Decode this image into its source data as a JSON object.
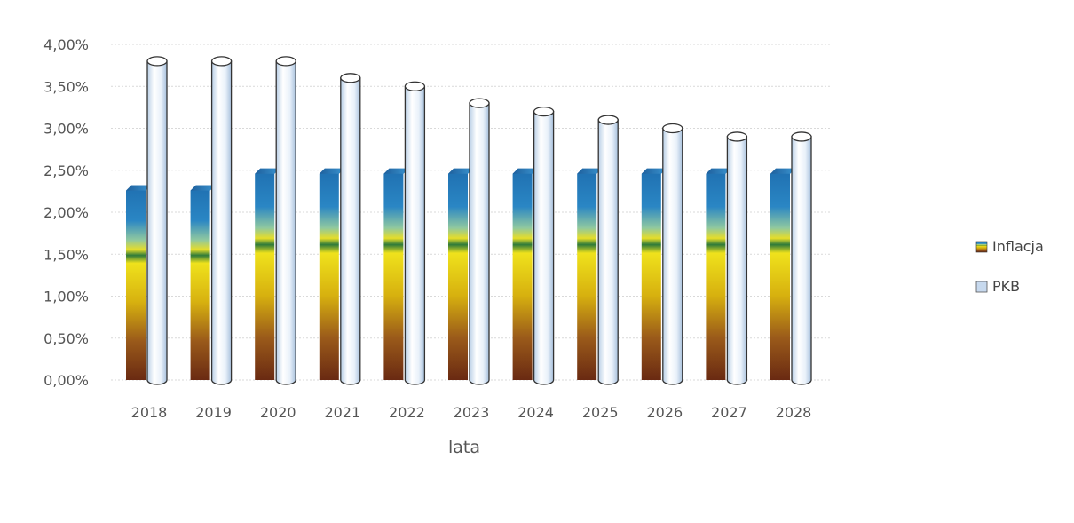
{
  "chart_data": {
    "type": "bar",
    "title": "",
    "xlabel": "lata",
    "ylabel": "",
    "ylim": [
      0,
      4
    ],
    "yticks": [
      "0,00%",
      "0,50%",
      "1,00%",
      "1,50%",
      "2,00%",
      "2,50%",
      "3,00%",
      "3,50%",
      "4,00%"
    ],
    "categories": [
      "2018",
      "2019",
      "2020",
      "2021",
      "2022",
      "2023",
      "2024",
      "2025",
      "2026",
      "2027",
      "2028"
    ],
    "series": [
      {
        "name": "Inflacja",
        "values": [
          2.3,
          2.3,
          2.5,
          2.5,
          2.5,
          2.5,
          2.5,
          2.5,
          2.5,
          2.5,
          2.5
        ]
      },
      {
        "name": "PKB",
        "values": [
          3.8,
          3.8,
          3.8,
          3.6,
          3.5,
          3.3,
          3.2,
          3.1,
          3.0,
          2.9,
          2.9
        ]
      }
    ],
    "grid": true,
    "legend": "right"
  }
}
